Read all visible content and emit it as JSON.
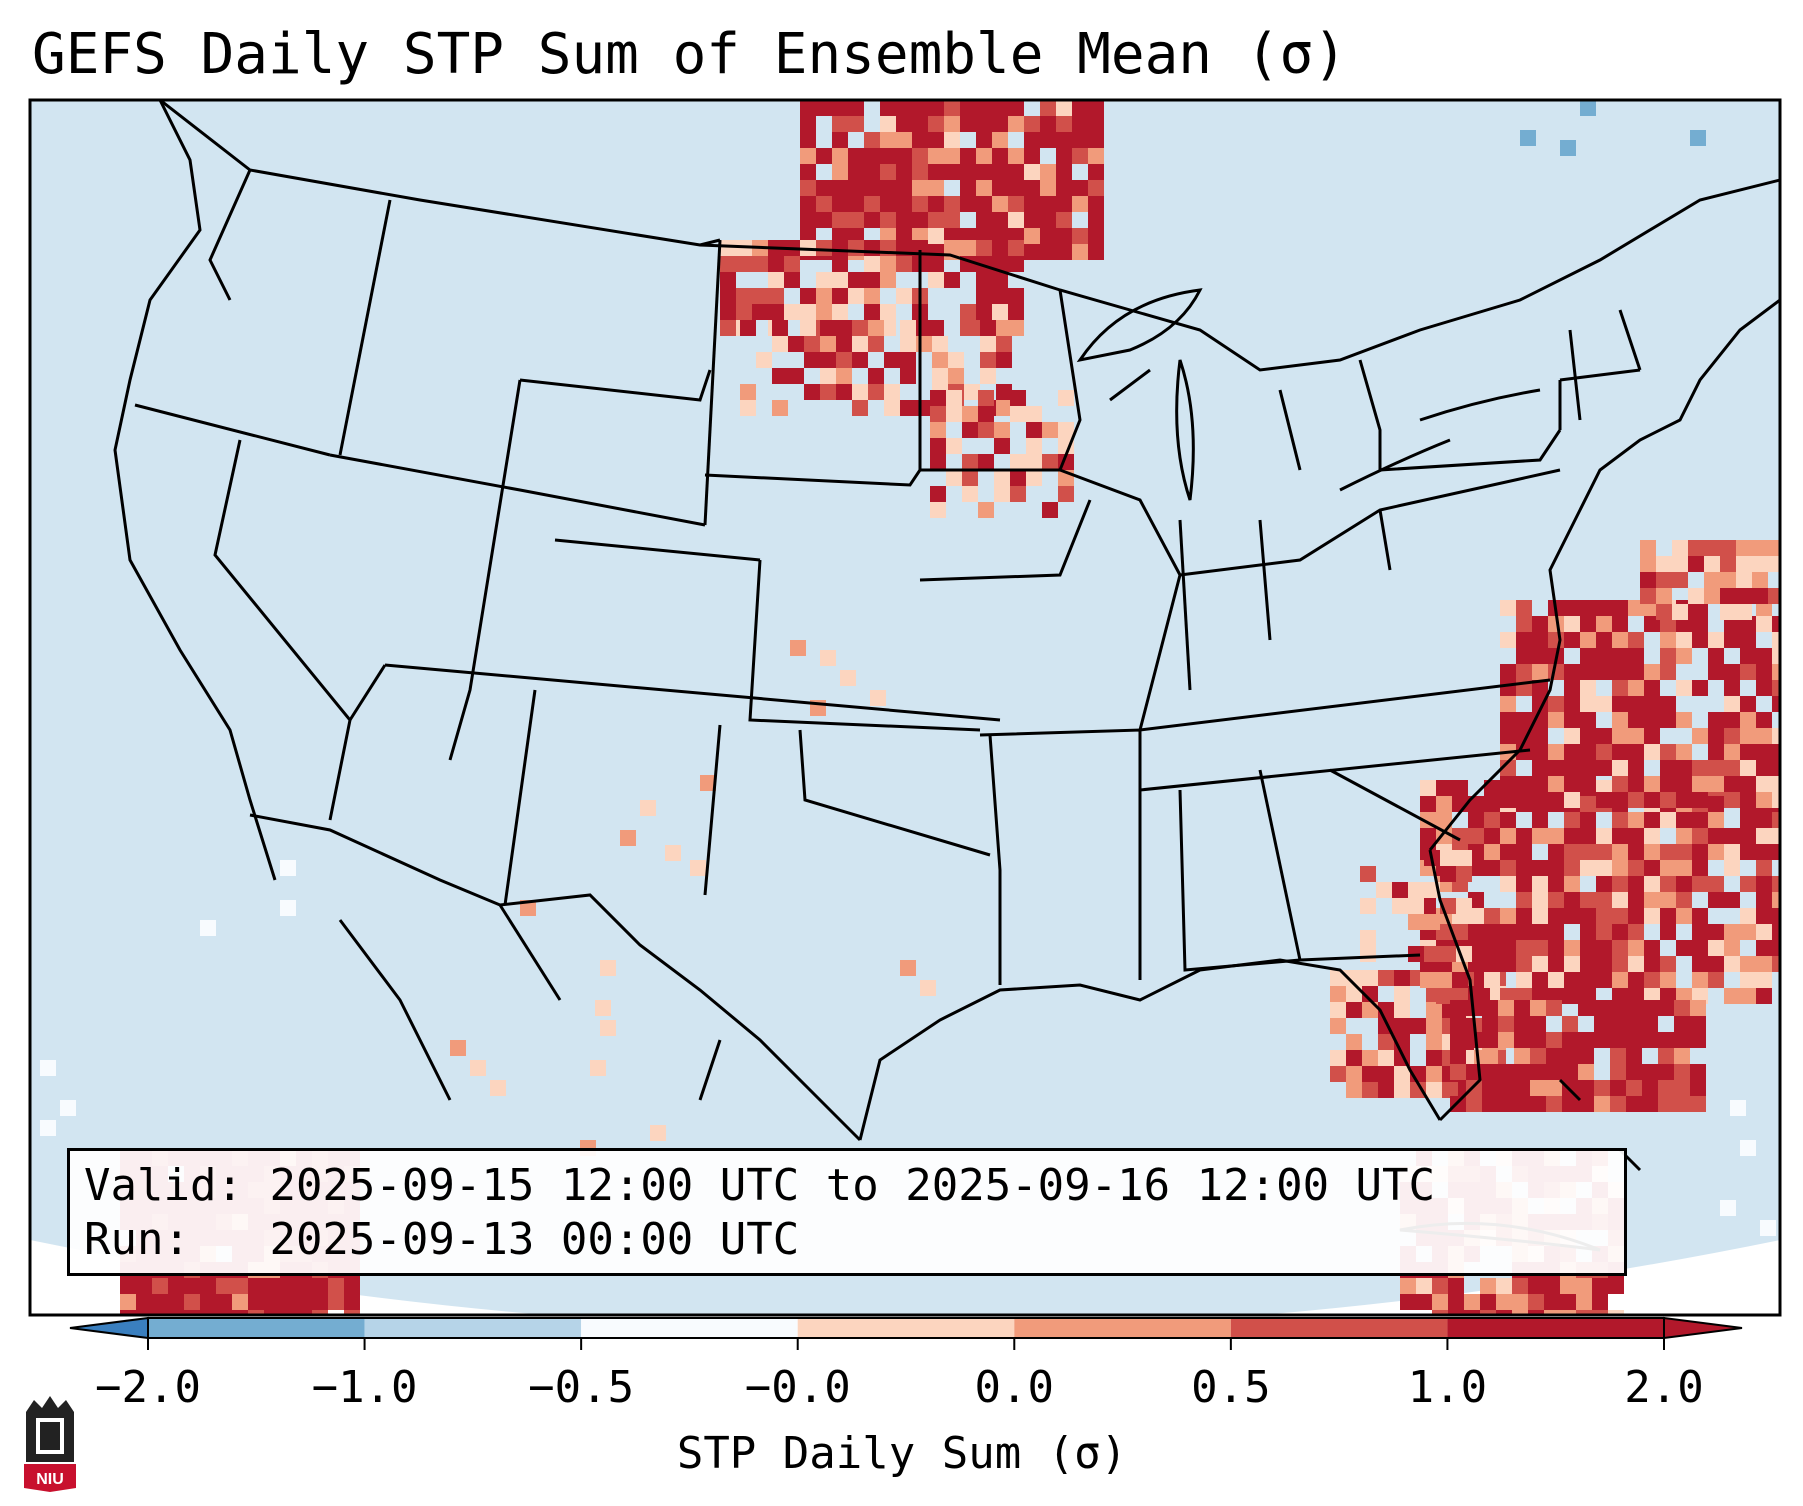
{
  "title": "GEFS Daily STP Sum of Ensemble Mean (σ)",
  "info": {
    "valid_label": "Valid:",
    "valid_value": "2025-09-15 12:00 UTC to 2025-09-16 12:00 UTC",
    "run_label": "Run:",
    "run_value": "2025-09-13 00:00 UTC"
  },
  "colorbar": {
    "label": "STP Daily Sum (σ)",
    "ticks": [
      "−2.0",
      "−1.0",
      "−0.5",
      "−0.0",
      "0.0",
      "0.5",
      "1.0",
      "2.0"
    ],
    "colors": [
      "#3a7fbf",
      "#74add1",
      "#b6d4e8",
      "#f8fbfe",
      "#fcd5bf",
      "#f19b7b",
      "#d1504a",
      "#b2182b"
    ]
  },
  "map": {
    "background_color": "#d2e5f1",
    "projection": "Lambert Conformal (CONUS)",
    "regions": [
      "Northern Plains / Dakotas",
      "Western Atlantic / Florida",
      "Southern Mexico / Central America"
    ]
  },
  "logo": {
    "text": "NIU",
    "name": "Northern Illinois University"
  }
}
